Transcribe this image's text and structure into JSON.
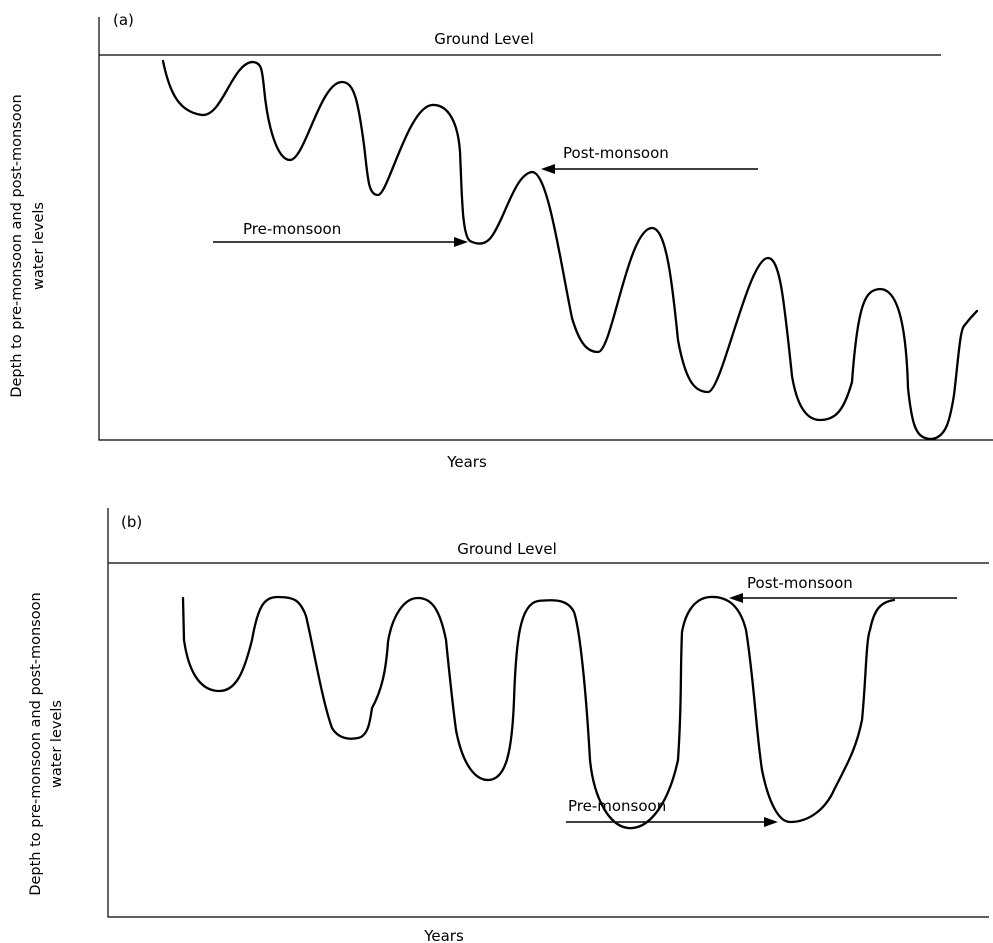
{
  "panels": [
    {
      "tag": "(a)",
      "ground_label": "Ground Level",
      "x_label": "Years",
      "y_label_line1": "Depth to pre-monsoon and post-monsoon",
      "y_label_line2": "water levels",
      "post_label": "Post-monsoon",
      "pre_label": "Pre-monsoon",
      "trend": "declining"
    },
    {
      "tag": "(b)",
      "ground_label": "Ground Level",
      "x_label": "Years",
      "y_label_line1": "Depth to pre-monsoon and post-monsoon",
      "y_label_line2": "water levels",
      "post_label": "Post-monsoon",
      "pre_label": "Pre-monsoon",
      "trend": "stable post-monsoon, deepening pre-monsoon"
    }
  ]
}
